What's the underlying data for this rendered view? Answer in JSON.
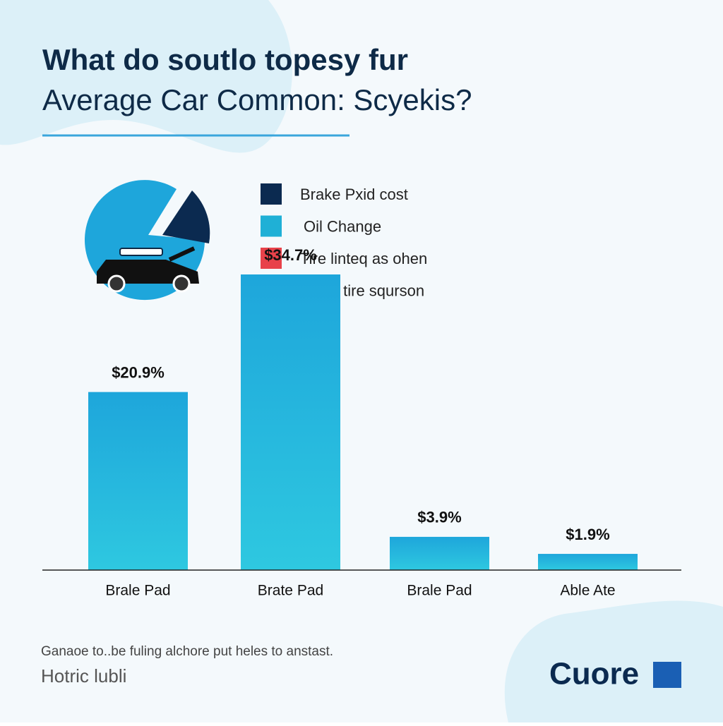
{
  "chart_data": {
    "type": "bar",
    "title_lines": [
      "What do soutlo topesy fur",
      "Average Car Common: Scyekis?"
    ],
    "legend": [
      {
        "name": "Brake Pxid cost",
        "color": "#0b2a50"
      },
      {
        "name": "Oil Change",
        "color": "#1fb0d6"
      },
      {
        "name": "Tire linteq as ohen",
        "color": "#e8424a"
      },
      {
        "name": "Other tire squrson",
        "color": "#f5a21c"
      }
    ],
    "categories": [
      "Brale Pad",
      "Brate Pad",
      "Brale Pad",
      "Able Ate"
    ],
    "values": [
      20.9,
      34.7,
      3.9,
      1.9
    ],
    "value_labels": [
      "$20.9%",
      "$34.7%",
      "$3.9%",
      "$1.9%"
    ],
    "color": "#1ea6db",
    "footnote": "Ganaoe to..be fuling alchore put heles to anstast.",
    "source": "Hotric lubli",
    "logo": "Cuore"
  }
}
